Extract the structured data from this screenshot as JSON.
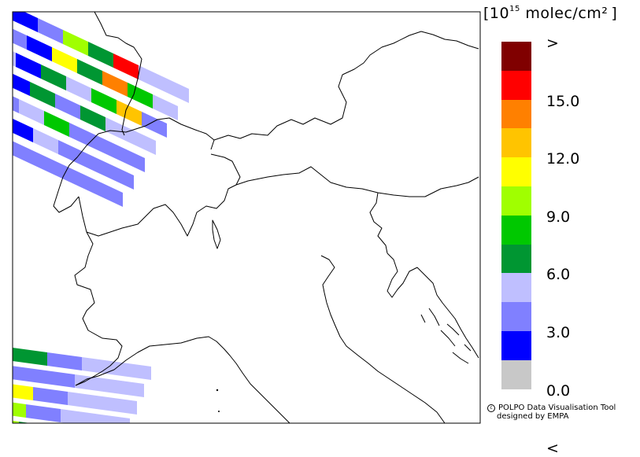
{
  "units": {
    "open_bracket": "[",
    "exponent_base": "10",
    "exponent": "15",
    "unit_text": " molec/cm²",
    "close_bracket": "]"
  },
  "colorbar": {
    "classes": [
      {
        "label_above": ">",
        "color": "#800000"
      },
      {
        "label_above": "15.0",
        "color": "#ff0000"
      },
      {
        "label_above": "",
        "color": "#ff8000"
      },
      {
        "label_above": "12.0",
        "color": "#ffc400"
      },
      {
        "label_above": "",
        "color": "#ffff00"
      },
      {
        "label_above": "9.0",
        "color": "#a0ff00"
      },
      {
        "label_above": "",
        "color": "#00c800"
      },
      {
        "label_above": "6.0",
        "color": "#009632"
      },
      {
        "label_above": "",
        "color": "#bfbfff"
      },
      {
        "label_above": "3.0",
        "color": "#8080ff"
      },
      {
        "label_above": "",
        "color": "#0000ff"
      },
      {
        "label_above": "0.0",
        "color": "#c8c8c8"
      }
    ],
    "below_label": "<",
    "tick_labels": [
      ">",
      "15.0",
      "12.0",
      "9.0",
      "6.0",
      "3.0",
      "0.0",
      "<"
    ]
  },
  "credit": {
    "line1": "POLPO Data Visualisation Tool",
    "line2": "designed by EMPA",
    "symbol": "c"
  },
  "map": {
    "swaths": [
      {
        "name": "north-west-swath",
        "cells": [
          [
            "#0000ff",
            "#8080ff",
            "#a0ff00",
            "#009632",
            "#ff0000",
            "#bfbfff",
            "#bfbfff"
          ],
          [
            "#8080ff",
            "#0000ff",
            "#ffff00",
            "#009632",
            "#ff8000",
            "#00c800",
            "#bfbfff"
          ],
          [
            "#bfbfff",
            "#0000ff",
            "#009632",
            "#bfbfff",
            "#00c800",
            "#ffc400",
            "#8080ff"
          ],
          [
            "#8080ff",
            "#0000ff",
            "#009632",
            "#8080ff",
            "#009632",
            "#bfbfff",
            "#bfbfff"
          ],
          [
            "#8080ff",
            "#8080ff",
            "#bfbfff",
            "#00c800",
            "#8080ff",
            "#8080ff",
            "#8080ff"
          ],
          [
            "#bfbfff",
            "#8080ff",
            "#0000ff",
            "#bfbfff",
            "#8080ff",
            "#8080ff",
            "#8080ff"
          ],
          [
            "#bfbfff",
            "#bfbfff",
            "#8080ff",
            "#8080ff",
            "#8080ff",
            "#8080ff",
            "#8080ff"
          ]
        ]
      },
      {
        "name": "south-west-swath",
        "cells": [
          [
            "#009632",
            "#8080ff",
            "#bfbfff",
            "#bfbfff"
          ],
          [
            "#8080ff",
            "#8080ff",
            "#bfbfff",
            "#bfbfff"
          ],
          [
            "#ffff00",
            "#8080ff",
            "#bfbfff",
            "#bfbfff"
          ],
          [
            "#a0ff00",
            "#8080ff",
            "#bfbfff",
            "#bfbfff"
          ],
          [
            "#a0ff00",
            "#009632",
            "#8080ff",
            "#bfbfff"
          ],
          [
            "#a0ff00",
            "#8080ff",
            "#8080ff",
            "#bfbfff"
          ]
        ]
      }
    ]
  }
}
